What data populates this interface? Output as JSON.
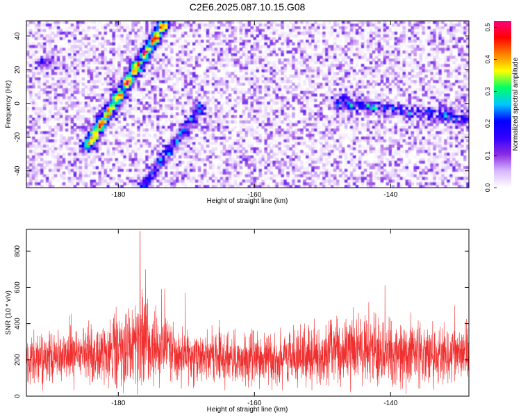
{
  "title": "C2E6.2025.087.10.15.G08",
  "chart_data": [
    {
      "type": "heatmap",
      "xlabel": "Height of straight line (km)",
      "ylabel": "Frequency (Hz)",
      "xlim": [
        -193.5,
        -128.5
      ],
      "ylim": [
        -50,
        49
      ],
      "xticks": [
        -180,
        -160,
        -140
      ],
      "xtick_labels": [
        "-180",
        "-160",
        "-140"
      ],
      "yticks": [
        -40,
        -20,
        0,
        20,
        40
      ],
      "ytick_labels": [
        "-40",
        "-20",
        "0",
        "20",
        "40"
      ],
      "colorbar": {
        "label": "Normalized spectral amplitude",
        "range": [
          0,
          0.52
        ],
        "ticks": [
          0,
          0.1,
          0.2,
          0.3,
          0.4,
          0.5
        ],
        "tick_labels": [
          "0.0",
          "0.1",
          "0.2",
          "0.3",
          "0.4",
          "0.5"
        ],
        "colors": [
          "#ffffff",
          "#d8b8ff",
          "#8a2be2",
          "#3300ff",
          "#0000ff",
          "#00c8ff",
          "#00ff66",
          "#ffff00",
          "#ff8000",
          "#ff0000",
          "#ff0080"
        ]
      },
      "features": [
        {
          "description_of": "strong diagonal streak",
          "x_start": -184.5,
          "y_start": -25,
          "x_end": -173.5,
          "y_end": 46,
          "peak": 0.5
        },
        {
          "description_of": "lower diagonal streak",
          "x_start": -176.5,
          "y_start": -50,
          "x_end": -168,
          "y_end": -3,
          "peak": 0.2
        },
        {
          "description_of": "upper-left blob",
          "x": -190.5,
          "y": 24,
          "peak": 0.15
        },
        {
          "description_of": "cluster right",
          "x_start": -147,
          "y_start": 0,
          "x_end": -130,
          "y_end": -8,
          "peak": 0.22
        }
      ]
    },
    {
      "type": "line",
      "xlabel": "Height of straight line (km)",
      "ylabel": "SNR (10 * v/v)",
      "xlim": [
        -193.5,
        -128.5
      ],
      "ylim": [
        0,
        920
      ],
      "xticks": [
        -180,
        -160,
        -140
      ],
      "xtick_labels": [
        "-180",
        "-160",
        "-140"
      ],
      "yticks": [
        0,
        200,
        400,
        600,
        800
      ],
      "ytick_labels": [
        "0",
        "200",
        "400",
        "600",
        "800"
      ],
      "color": "#f03030",
      "envelope": {
        "x": [
          -193.5,
          -188,
          -184,
          -182,
          -180,
          -178,
          -177,
          -176,
          -175,
          -173,
          -170,
          -165,
          -160,
          -155,
          -150,
          -147,
          -145,
          -143,
          -140,
          -137,
          -134,
          -131,
          -128.5
        ],
        "base": [
          200,
          215,
          230,
          240,
          250,
          265,
          280,
          285,
          270,
          250,
          225,
          210,
          205,
          210,
          225,
          245,
          255,
          250,
          240,
          235,
          230,
          220,
          215
        ],
        "spread": [
          110,
          125,
          140,
          150,
          170,
          200,
          240,
          260,
          210,
          170,
          130,
          115,
          110,
          120,
          140,
          160,
          170,
          165,
          150,
          145,
          140,
          130,
          120
        ]
      },
      "peak": {
        "x": -176.8,
        "y": 910
      }
    }
  ]
}
